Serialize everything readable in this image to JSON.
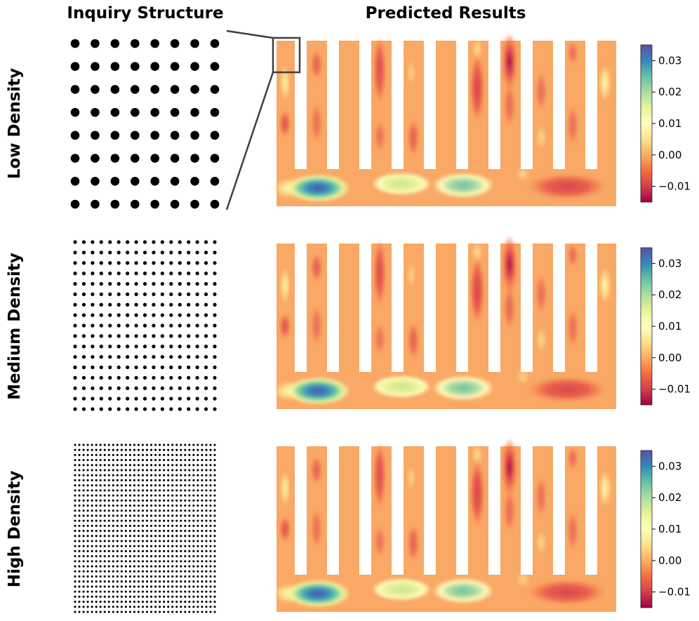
{
  "headers": {
    "inquiry": "Inquiry Structure",
    "predicted": "Predicted Results"
  },
  "rows": [
    {
      "label": "Low Density",
      "grid": 8
    },
    {
      "label": "Medium Density",
      "grid": 17
    },
    {
      "label": "High Density",
      "grid": 34
    }
  ],
  "colorbar": {
    "colormap": "Spectral",
    "min": -0.015,
    "max": 0.035,
    "ticks": [
      {
        "value": 0.03,
        "label": "0.03"
      },
      {
        "value": 0.02,
        "label": "0.02"
      },
      {
        "value": 0.01,
        "label": "0.01"
      },
      {
        "value": 0.0,
        "label": "0.00"
      },
      {
        "value": -0.01,
        "label": "−0.01"
      }
    ]
  },
  "colors": {
    "dot": "#000000",
    "inset_box": "#404040",
    "base_field": "#f9a865"
  }
}
